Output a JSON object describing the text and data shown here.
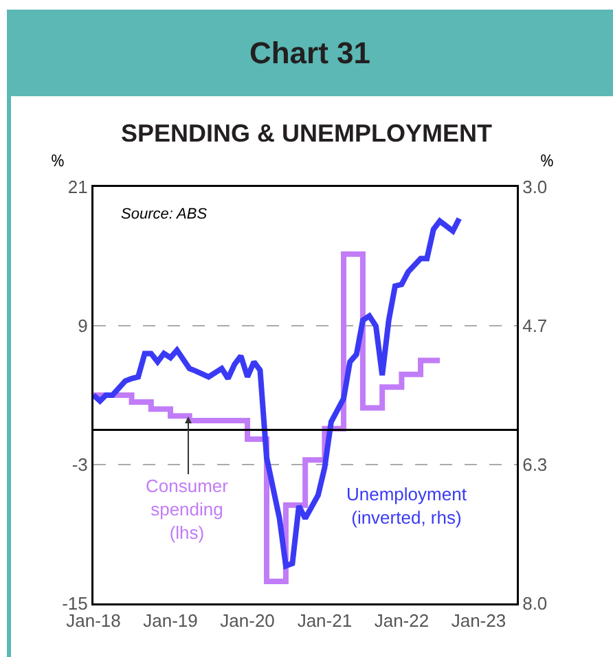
{
  "chart_data": {
    "type": "line",
    "title": "Chart 31",
    "subtitle": "SPENDING & UNEMPLOYMENT",
    "ylabel": "%",
    "y2label": "%",
    "annotations": [
      "Source: ABS"
    ],
    "xlim": [
      "2018-01",
      "2023-07"
    ],
    "xticks": [
      {
        "value": "2018-01",
        "label": "Jan-18"
      },
      {
        "value": "2019-01",
        "label": "Jan-19"
      },
      {
        "value": "2020-01",
        "label": "Jan-20"
      },
      {
        "value": "2021-01",
        "label": "Jan-21"
      },
      {
        "value": "2022-01",
        "label": "Jan-22"
      },
      {
        "value": "2023-01",
        "label": "Jan-23"
      }
    ],
    "ylim": [
      -15,
      21
    ],
    "yticks": [
      -15,
      -3,
      9,
      21
    ],
    "y2lim": [
      8.0,
      3.0
    ],
    "y2ticks": [
      {
        "value": 8,
        "label": "8.0"
      },
      {
        "value": 6.333,
        "label": "6.3"
      },
      {
        "value": 4.667,
        "label": "4.7"
      },
      {
        "value": 3,
        "label": "3.0"
      }
    ],
    "grid": "y",
    "legend": false,
    "line_style": "solid",
    "marker": "none",
    "ref_lines": [
      {
        "axis": "y",
        "value": 0,
        "color": "#000000"
      }
    ],
    "series": [
      {
        "name": "Consumer spending (lhs)",
        "type": "step",
        "color": "#c17cf7",
        "x": [
          "2018-01",
          "2018-07",
          "2018-10",
          "2019-01",
          "2019-04",
          "2020-01",
          "2020-04",
          "2020-07",
          "2020-10",
          "2021-01",
          "2021-04",
          "2021-07",
          "2021-10",
          "2022-01",
          "2022-04",
          "2022-07"
        ],
        "values": [
          3.0,
          2.4,
          1.8,
          1.2,
          0.8,
          -0.8,
          -13.1,
          -6.5,
          -2.6,
          0.1,
          15.2,
          1.9,
          3.7,
          4.8,
          6.0,
          6.0
        ]
      },
      {
        "name": "Unemployment (inverted, rhs)",
        "axis": "y2",
        "color": "#3a3af5",
        "x": [
          "2018-01",
          "2018-02",
          "2018-03",
          "2018-04",
          "2018-06",
          "2018-07",
          "2018-08",
          "2018-09",
          "2018-10",
          "2018-11",
          "2018-12",
          "2019-01",
          "2019-02",
          "2019-04",
          "2019-05",
          "2019-07",
          "2019-09",
          "2019-10",
          "2019-11",
          "2019-12",
          "2020-01",
          "2020-02",
          "2020-03",
          "2020-04",
          "2020-06",
          "2020-07",
          "2020-08",
          "2020-09",
          "2020-10",
          "2020-12",
          "2021-01",
          "2021-02",
          "2021-04",
          "2021-05",
          "2021-06",
          "2021-07",
          "2021-08",
          "2021-09",
          "2021-10",
          "2021-11",
          "2021-12",
          "2022-01",
          "2022-02",
          "2022-04",
          "2022-05",
          "2022-06",
          "2022-07",
          "2022-09",
          "2022-10"
        ],
        "values": [
          5.5,
          5.57,
          5.5,
          5.5,
          5.33,
          5.3,
          5.28,
          5.0,
          5.0,
          5.1,
          5.0,
          5.05,
          4.96,
          5.18,
          5.21,
          5.28,
          5.18,
          5.3,
          5.13,
          5.03,
          5.28,
          5.1,
          5.2,
          6.25,
          6.98,
          7.55,
          7.52,
          6.83,
          6.98,
          6.7,
          6.37,
          5.82,
          5.54,
          5.1,
          5.01,
          4.6,
          4.55,
          4.67,
          5.26,
          4.6,
          4.19,
          4.17,
          4.02,
          3.86,
          3.86,
          3.51,
          3.41,
          3.53,
          3.38
        ]
      }
    ]
  }
}
